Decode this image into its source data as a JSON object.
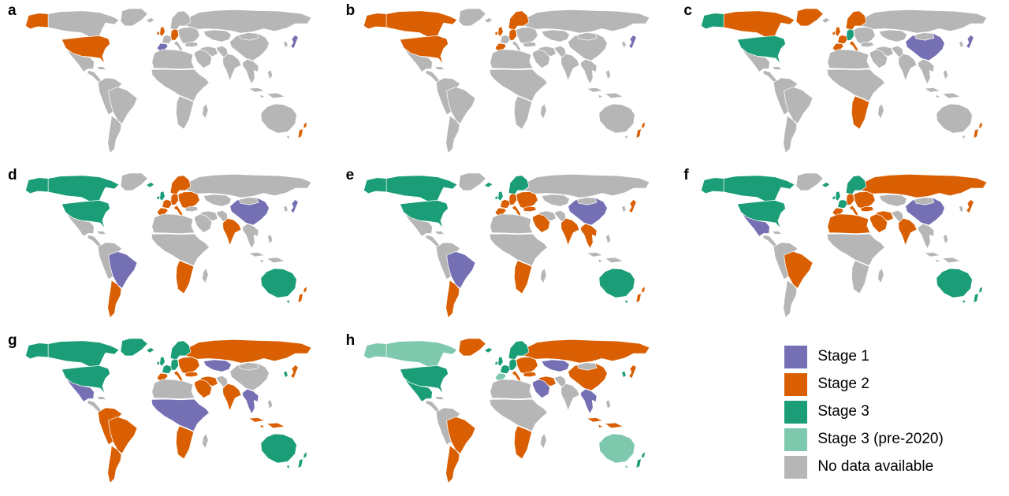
{
  "colors": {
    "stage1": "#7570b3",
    "stage2": "#d95f02",
    "stage3": "#1b9e77",
    "stage3_pre2020": "#7ec8ad",
    "no_data": "#b6b6b6",
    "border": "#ffffff",
    "background": "#ffffff"
  },
  "legend": {
    "items": [
      {
        "key": "stage1",
        "label": "Stage 1"
      },
      {
        "key": "stage2",
        "label": "Stage 2"
      },
      {
        "key": "stage3",
        "label": "Stage 3"
      },
      {
        "key": "stage3_pre2020",
        "label": "Stage 3 (pre-2020)"
      },
      {
        "key": "no_data",
        "label": "No data available"
      }
    ]
  },
  "panels": [
    {
      "id": "a",
      "label": "a",
      "stages": {
        "alaska": "stage2",
        "usa": "stage2",
        "uk": "stage2",
        "germany": "stage2",
        "spain": "stage1",
        "japan": "stage1",
        "new_zealand": "stage2"
      }
    },
    {
      "id": "b",
      "label": "b",
      "stages": {
        "alaska": "stage2",
        "canada": "stage2",
        "usa": "stage2",
        "uk": "stage2",
        "scandinavia": "stage2",
        "germany": "stage2",
        "spain": "stage2",
        "japan": "stage1",
        "new_zealand": "stage2"
      }
    },
    {
      "id": "c",
      "label": "c",
      "stages": {
        "alaska": "stage3",
        "usa": "stage3",
        "canada": "stage2",
        "greenland": "stage2",
        "uk": "stage2",
        "scandinavia": "stage2",
        "germany": "stage3",
        "france": "stage2",
        "spain": "stage2",
        "italy": "stage2",
        "china": "stage1",
        "japan": "stage1",
        "south_africa": "stage2",
        "new_zealand": "stage2"
      }
    },
    {
      "id": "d",
      "label": "d",
      "stages": {
        "alaska": "stage3",
        "canada": "stage3",
        "usa": "stage3",
        "iceland": "stage3",
        "uk": "stage3",
        "scandinavia": "stage2",
        "germany": "stage2",
        "france": "stage2",
        "spain": "stage2",
        "italy": "stage2",
        "eastern_europe": "stage2",
        "brazil": "stage1",
        "argentina": "stage2",
        "india": "stage2",
        "china": "stage1",
        "japan": "stage1",
        "australia": "stage3",
        "south_africa": "stage2",
        "new_zealand": "stage2"
      }
    },
    {
      "id": "e",
      "label": "e",
      "stages": {
        "alaska": "stage3",
        "canada": "stage3",
        "usa": "stage3",
        "brazil": "stage1",
        "argentina": "stage2",
        "iceland": "stage3",
        "uk": "stage3",
        "scandinavia": "stage3",
        "germany": "stage2",
        "france": "stage2",
        "spain": "stage2",
        "italy": "stage2",
        "eastern_europe": "stage2",
        "turkey": "stage2",
        "middle_east": "stage2",
        "india": "stage2",
        "china": "stage1",
        "se_asia": "stage2",
        "japan": "stage2",
        "australia": "stage3",
        "new_zealand": "stage2",
        "south_africa": "stage2"
      }
    },
    {
      "id": "f",
      "label": "f",
      "stages": {
        "alaska": "stage3",
        "canada": "stage3",
        "usa": "stage3",
        "mexico": "stage1",
        "brazil": "stage2",
        "iceland": "stage3",
        "uk": "stage3",
        "scandinavia": "stage3",
        "germany": "stage2",
        "france": "stage3",
        "spain": "stage2",
        "italy": "stage2",
        "eastern_europe": "stage2",
        "russia": "stage2",
        "turkey": "stage2",
        "middle_east": "stage2",
        "iran": "stage2",
        "north_africa": "stage2",
        "india": "stage2",
        "china": "stage1",
        "japan": "stage2",
        "australia": "stage3",
        "new_zealand": "stage3"
      }
    },
    {
      "id": "g",
      "label": "g",
      "stages": {
        "alaska": "stage3",
        "canada": "stage3",
        "usa": "stage3",
        "mexico": "stage1",
        "greenland": "stage3",
        "sa_north": "stage2",
        "brazil": "stage2",
        "argentina": "stage2",
        "iceland": "stage3",
        "uk": "stage3",
        "scandinavia": "stage3",
        "germany": "stage3",
        "france": "stage3",
        "spain": "stage2",
        "italy": "stage2",
        "eastern_europe": "stage2",
        "russia": "stage2",
        "turkey": "stage2",
        "middle_east": "stage2",
        "iran": "stage2",
        "central_asia": "stage1",
        "india": "stage2",
        "se_asia": "stage1",
        "indonesia": "stage2",
        "japan": "stage2",
        "korea": "stage3",
        "west_central_africa": "stage1",
        "south_africa": "stage2",
        "australia": "stage3",
        "new_zealand": "stage3"
      }
    },
    {
      "id": "h",
      "label": "h",
      "stages": {
        "alaska": "stage3_pre2020",
        "canada": "stage3_pre2020",
        "usa": "stage3",
        "mexico": "stage3",
        "greenland": "stage2",
        "brazil": "stage2",
        "argentina": "stage2",
        "iceland": "stage3",
        "uk": "stage3",
        "scandinavia": "stage3",
        "germany": "stage3",
        "france": "stage3",
        "spain": "stage3_pre2020",
        "italy": "stage2",
        "eastern_europe": "stage2",
        "russia": "stage2",
        "turkey": "stage2",
        "middle_east": "stage1",
        "iran": "stage2",
        "central_asia": "stage1",
        "china": "stage2",
        "se_asia": "stage1",
        "indonesia": "stage2",
        "japan": "stage2",
        "korea": "stage3",
        "south_africa": "stage2",
        "australia": "stage3_pre2020",
        "new_zealand": "stage3"
      }
    }
  ]
}
